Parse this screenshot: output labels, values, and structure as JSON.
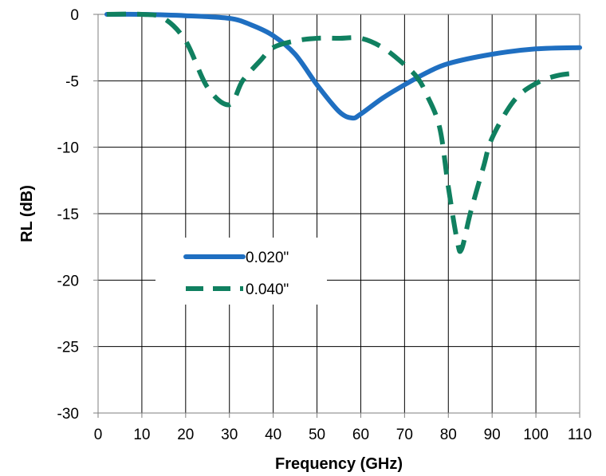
{
  "chart_data": {
    "type": "line",
    "title": "",
    "xlabel": "Frequency (GHz)",
    "ylabel": "RL (dB)",
    "xlim": [
      0,
      110
    ],
    "ylim": [
      -30,
      0
    ],
    "x_ticks": [
      0,
      10,
      20,
      30,
      40,
      50,
      60,
      70,
      80,
      90,
      100,
      110
    ],
    "y_ticks": [
      0,
      -5,
      -10,
      -15,
      -20,
      -25,
      -30
    ],
    "x_tick_labels": [
      "0",
      "10",
      "20",
      "30",
      "40",
      "50",
      "60",
      "70",
      "80",
      "90",
      "100",
      "110"
    ],
    "y_tick_labels": [
      "0",
      "-5",
      "-10",
      "-15",
      "-20",
      "-25",
      "-30"
    ],
    "grid": "vertical and horizontal major gridlines",
    "legend_position": "center-left",
    "series": [
      {
        "name": "0.020\"",
        "color": "#1f6fc1",
        "line_style": "solid",
        "x": [
          2,
          10,
          20,
          30,
          35,
          40,
          45,
          50,
          55,
          58,
          60,
          65,
          70,
          75,
          80,
          90,
          100,
          110
        ],
        "y": [
          0,
          0,
          -0.1,
          -0.3,
          -0.8,
          -1.6,
          -3.0,
          -5.3,
          -7.3,
          -7.8,
          -7.5,
          -6.3,
          -5.3,
          -4.4,
          -3.7,
          -3.0,
          -2.6,
          -2.5
        ]
      },
      {
        "name": "0.040\"",
        "color": "#108060",
        "line_style": "dashed",
        "x": [
          2,
          10,
          15,
          20,
          25,
          30,
          33,
          37,
          40,
          45,
          50,
          55,
          60,
          65,
          70,
          73,
          75,
          78,
          80,
          82,
          83,
          85,
          88,
          90,
          95,
          100,
          105,
          110
        ],
        "y": [
          0,
          0,
          -0.3,
          -2.0,
          -5.5,
          -6.8,
          -5.0,
          -3.5,
          -2.5,
          -2.0,
          -1.8,
          -1.8,
          -1.8,
          -2.5,
          -3.8,
          -4.8,
          -6.0,
          -8.5,
          -13.0,
          -17.0,
          -17.7,
          -15.0,
          -11.5,
          -9.3,
          -6.5,
          -5.2,
          -4.6,
          -4.4
        ]
      }
    ]
  }
}
